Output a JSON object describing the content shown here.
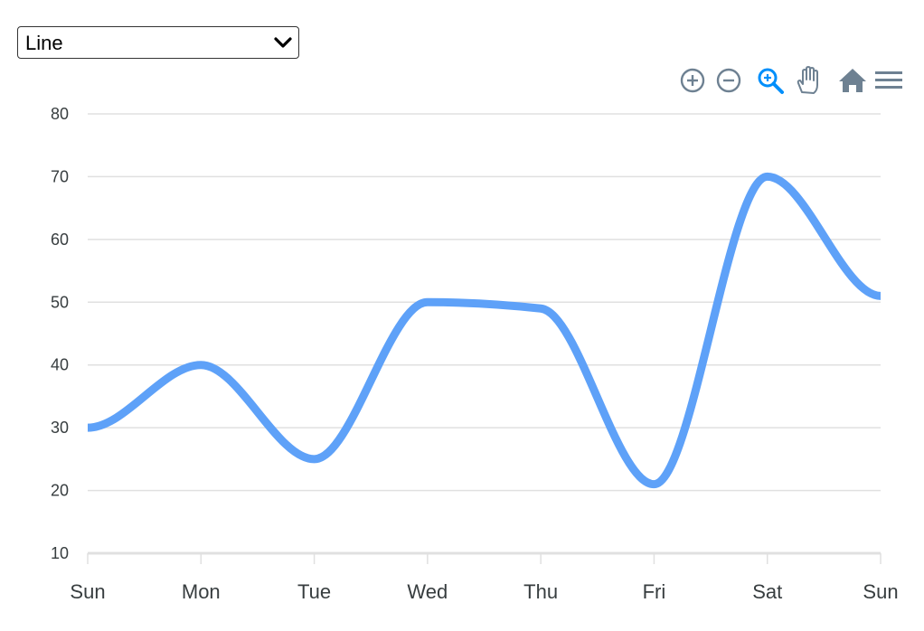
{
  "chart_selector": {
    "selected": "Line",
    "options": [
      "Line"
    ]
  },
  "toolbar": {
    "icons": [
      "zoom-in-icon",
      "zoom-out-icon",
      "selection-zoom-icon",
      "pan-hand-icon",
      "reset-home-icon",
      "menu-icon"
    ],
    "active_icon": "selection-zoom-icon",
    "icon_color": "#6e8192",
    "active_color": "#008ffb"
  },
  "chart_data": {
    "type": "line",
    "curve": "smooth",
    "categories": [
      "Sun",
      "Mon",
      "Tue",
      "Wed",
      "Thu",
      "Fri",
      "Sat",
      "Sun"
    ],
    "series": [
      {
        "values": [
          30,
          40,
          25,
          50,
          49,
          21,
          70,
          51
        ],
        "color": "#5ea1f8"
      }
    ],
    "ylim": [
      10,
      80
    ],
    "yticks": [
      "10",
      "20",
      "30",
      "40",
      "50",
      "60",
      "70",
      "80"
    ],
    "grid": true,
    "legend": "none"
  }
}
